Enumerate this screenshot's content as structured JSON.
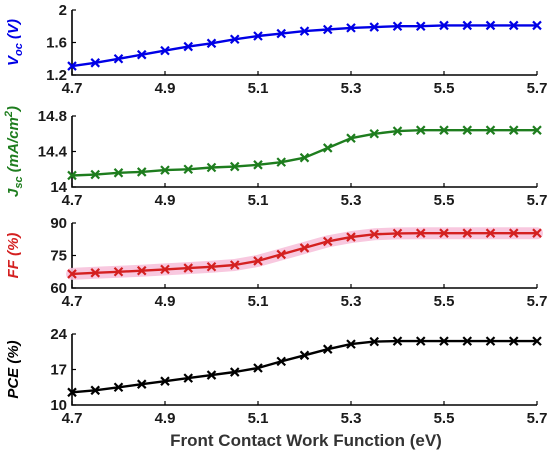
{
  "chart_data": [
    {
      "type": "line",
      "ylabel": {
        "main": "V",
        "sub": "oc",
        "unit": " (V)"
      },
      "color": "#0000e6",
      "marker": "x",
      "xlim": [
        4.7,
        5.7
      ],
      "ylim": [
        1.2,
        2.0
      ],
      "xticks": [
        "4.7",
        "4.9",
        "5.1",
        "5.3",
        "5.5",
        "5.7"
      ],
      "yticks": [
        "1.2",
        "1.6",
        "2"
      ],
      "series": [
        {
          "x": [
            4.7,
            4.75,
            4.8,
            4.85,
            4.9,
            4.95,
            5.0,
            5.05,
            5.1,
            5.15,
            5.2,
            5.25,
            5.3,
            5.35,
            5.4,
            5.45,
            5.5,
            5.55,
            5.6,
            5.65,
            5.7
          ],
          "y": [
            1.31,
            1.35,
            1.4,
            1.45,
            1.5,
            1.55,
            1.59,
            1.64,
            1.68,
            1.71,
            1.74,
            1.76,
            1.78,
            1.79,
            1.8,
            1.8,
            1.81,
            1.81,
            1.81,
            1.81,
            1.81
          ]
        }
      ]
    },
    {
      "type": "line",
      "ylabel": {
        "main": "J",
        "sub": "sc",
        "unit": " (mA/cm",
        "sup": "2",
        "close": ")"
      },
      "color": "#1e7d1e",
      "marker": "x",
      "xlim": [
        4.7,
        5.7
      ],
      "ylim": [
        14.0,
        14.8
      ],
      "xticks": [
        "4.7",
        "4.9",
        "5.1",
        "5.3",
        "5.5",
        "5.7"
      ],
      "yticks": [
        "14",
        "14.4",
        "14.8"
      ],
      "series": [
        {
          "x": [
            4.7,
            4.75,
            4.8,
            4.85,
            4.9,
            4.95,
            5.0,
            5.05,
            5.1,
            5.15,
            5.2,
            5.25,
            5.3,
            5.35,
            5.4,
            5.45,
            5.5,
            5.55,
            5.6,
            5.65,
            5.7
          ],
          "y": [
            14.13,
            14.14,
            14.16,
            14.17,
            14.19,
            14.2,
            14.22,
            14.23,
            14.25,
            14.28,
            14.33,
            14.44,
            14.55,
            14.6,
            14.63,
            14.64,
            14.64,
            14.64,
            14.64,
            14.64,
            14.64
          ]
        }
      ]
    },
    {
      "type": "line",
      "ylabel": {
        "main": "FF",
        "sub": "",
        "unit": " (%)"
      },
      "color": "#d42020",
      "glow": "#f7c2dc",
      "marker": "x",
      "xlim": [
        4.7,
        5.7
      ],
      "ylim": [
        60,
        90
      ],
      "xticks": [
        "4.7",
        "4.9",
        "5.1",
        "5.3",
        "5.5",
        "5.7"
      ],
      "yticks": [
        "60",
        "75",
        "90"
      ],
      "series": [
        {
          "x": [
            4.7,
            4.75,
            4.8,
            4.85,
            4.9,
            4.95,
            5.0,
            5.05,
            5.1,
            5.15,
            5.2,
            5.25,
            5.3,
            5.35,
            5.4,
            5.45,
            5.5,
            5.55,
            5.6,
            5.65,
            5.7
          ],
          "y": [
            66.5,
            67.0,
            67.5,
            68.0,
            68.6,
            69.2,
            69.8,
            70.6,
            72.5,
            75.5,
            78.5,
            81.5,
            83.5,
            84.8,
            85.2,
            85.3,
            85.3,
            85.3,
            85.3,
            85.3,
            85.3
          ]
        }
      ]
    },
    {
      "type": "line",
      "ylabel": {
        "main": "PCE",
        "sub": "",
        "unit": " (%)"
      },
      "color": "#000000",
      "marker": "x",
      "xlim": [
        4.7,
        5.7
      ],
      "ylim": [
        10,
        24
      ],
      "xticks": [
        "4.7",
        "4.9",
        "5.1",
        "5.3",
        "5.5",
        "5.7"
      ],
      "yticks": [
        "10",
        "17",
        "24"
      ],
      "series": [
        {
          "x": [
            4.7,
            4.75,
            4.8,
            4.85,
            4.9,
            4.95,
            5.0,
            5.05,
            5.1,
            5.15,
            5.2,
            5.25,
            5.3,
            5.35,
            5.4,
            5.45,
            5.5,
            5.55,
            5.6,
            5.65,
            5.7
          ],
          "y": [
            12.5,
            12.9,
            13.5,
            14.1,
            14.7,
            15.3,
            15.9,
            16.5,
            17.3,
            18.6,
            19.8,
            21.0,
            22.0,
            22.5,
            22.6,
            22.6,
            22.6,
            22.6,
            22.6,
            22.6,
            22.6
          ]
        }
      ]
    }
  ],
  "xlabel": "Front Contact Work Function (eV)"
}
